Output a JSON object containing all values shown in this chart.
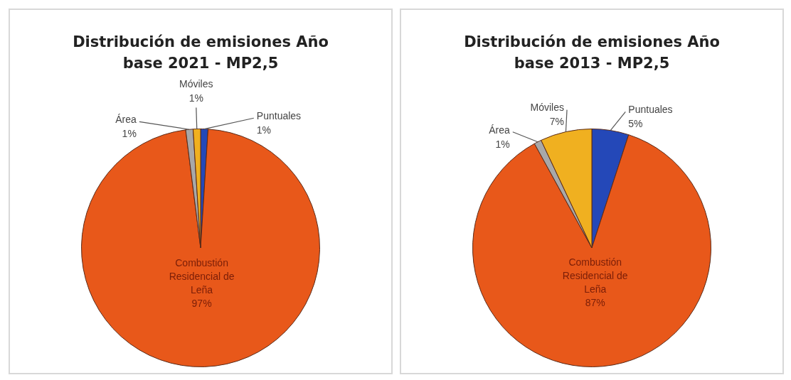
{
  "chart_data": [
    {
      "type": "pie",
      "title": "Distribución de emisiones Año base 2021 - MP2,5",
      "categories": [
        "Puntuales",
        "Combustión Residencial de Leña",
        "Área",
        "Móviles"
      ],
      "values": [
        1,
        97,
        1,
        1
      ],
      "value_labels": [
        "1%",
        "97%",
        "1%",
        "1%"
      ],
      "colors": [
        "#2448b8",
        "#e8581a",
        "#a8a8a8",
        "#f0b020"
      ]
    },
    {
      "type": "pie",
      "title": "Distribución de emisiones Año base 2013 - MP2,5",
      "categories": [
        "Puntuales",
        "Combustión Residencial de Leña",
        "Área",
        "Móviles"
      ],
      "values": [
        5,
        87,
        1,
        7
      ],
      "value_labels": [
        "5%",
        "87%",
        "1%",
        "7%"
      ],
      "colors": [
        "#2448b8",
        "#e8581a",
        "#a8a8a8",
        "#f0b020"
      ]
    }
  ]
}
